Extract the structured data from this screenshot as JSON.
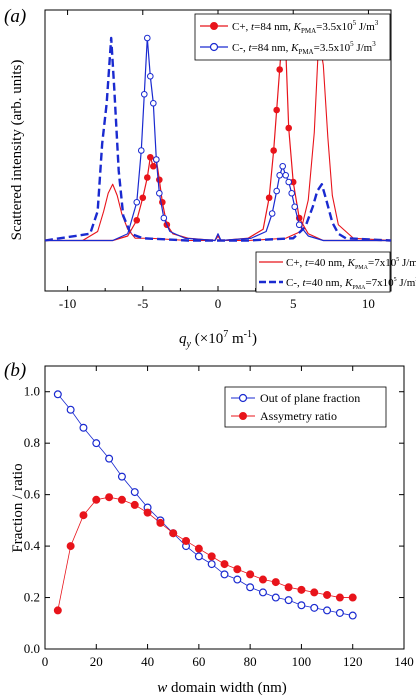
{
  "panel_a": {
    "label": "(a)",
    "ylabel": "Scattered intensity (arb. units)",
    "xlabel_main": "q",
    "xlabel_sub": "y",
    "xlabel_unit": " (×10",
    "xlabel_exp": "7",
    "xlabel_unit2": " m",
    "xlabel_exp2": "-1",
    "xlabel_close": ")",
    "legend_top": [
      {
        "name": "C+, t=84 nm, K_PMA=3.5x10^5 J/m^3",
        "text_a": "C+, ",
        "t": "t",
        "text_b": "=84 nm, ",
        "k": "K",
        "ksub": "PMA",
        "text_c": "=3.5x10",
        "e1": "5",
        "text_d": " J/m",
        "e2": "3"
      },
      {
        "name": "C-, t=84 nm, K_PMA=3.5x10^5 J/m^3",
        "text_a": "C-, ",
        "t": "t",
        "text_b": "=84 nm, ",
        "k": "K",
        "ksub": "PMA",
        "text_c": "=3.5x10",
        "e1": "5",
        "text_d": " J/m",
        "e2": "3"
      }
    ],
    "legend_bottom": [
      {
        "name": "C+, t=40 nm, K_PMA=7x10^5 J/m^3",
        "text_a": "C+, ",
        "t": "t",
        "text_b": "=40 nm, ",
        "k": "K",
        "ksub": "PMA",
        "text_c": "=7x10",
        "e1": "5",
        "text_d": " J/m",
        "e2": "3"
      },
      {
        "name": "C-, t=40 nm, K_PMA=7x10^5 J/m^3",
        "text_a": "C-, ",
        "t": "t",
        "text_b": "=40 nm, ",
        "k": "K",
        "ksub": "PMA",
        "text_c": "=7x10",
        "e1": "5",
        "text_d": " J/m",
        "e2": "3"
      }
    ]
  },
  "panel_b": {
    "label": "(b)",
    "ylabel": "Fraction / ratio",
    "xlabel_italic": "w",
    "xlabel_rest": " domain width (nm)"
  },
  "colors": {
    "red": "#e8141b",
    "blue": "#1a2ad0",
    "axis": "#000000"
  },
  "chart_data": [
    {
      "type": "line",
      "panel": "(a)",
      "xlabel": "q_y (×10^7 m^-1)",
      "ylabel": "Scattered intensity (arb. units)",
      "xlim": [
        -11.5,
        11.5
      ],
      "ylim": [
        0,
        1.0
      ],
      "xticks": [
        -10,
        -5,
        0,
        5,
        10
      ],
      "legend_positions": [
        "top-right",
        "bottom-right"
      ],
      "series": [
        {
          "name": "C+, t=84 nm, K_PMA=3.5x10^5 J/m^3",
          "color": "#e8141b",
          "style": "solid-filled-circle",
          "x": [
            -12,
            -7,
            -6,
            -5.4,
            -5.0,
            -4.7,
            -4.5,
            -4.3,
            -4.1,
            -3.9,
            -3.7,
            -3.4,
            -3.0,
            -2.0,
            -0.2,
            0,
            0.2,
            2.0,
            3.0,
            3.4,
            3.7,
            3.9,
            4.1,
            4.3,
            4.5,
            4.7,
            5.0,
            5.4,
            6.0,
            7.0,
            12
          ],
          "y": [
            0.02,
            0.02,
            0.04,
            0.11,
            0.21,
            0.3,
            0.39,
            0.35,
            0.38,
            0.29,
            0.19,
            0.09,
            0.05,
            0.03,
            0.02,
            0.04,
            0.02,
            0.03,
            0.07,
            0.21,
            0.42,
            0.6,
            0.78,
            0.96,
            0.88,
            0.52,
            0.28,
            0.12,
            0.05,
            0.02,
            0.02
          ]
        },
        {
          "name": "C-, t=84 nm, K_PMA=3.5x10^5 J/m^3",
          "color": "#1a2ad0",
          "style": "solid-open-circle",
          "x": [
            -12,
            -7,
            -6,
            -5.4,
            -5.1,
            -4.9,
            -4.7,
            -4.5,
            -4.3,
            -4.1,
            -3.9,
            -3.6,
            -3.2,
            -2.2,
            -0.2,
            0,
            0.2,
            2.2,
            3.2,
            3.6,
            3.9,
            4.1,
            4.3,
            4.5,
            4.7,
            4.9,
            5.1,
            5.4,
            6.0,
            7.0,
            12
          ],
          "y": [
            0.02,
            0.02,
            0.05,
            0.19,
            0.42,
            0.67,
            0.92,
            0.75,
            0.63,
            0.38,
            0.23,
            0.12,
            0.06,
            0.03,
            0.02,
            0.05,
            0.02,
            0.03,
            0.06,
            0.14,
            0.24,
            0.31,
            0.35,
            0.31,
            0.28,
            0.23,
            0.17,
            0.09,
            0.04,
            0.02,
            0.02
          ]
        },
        {
          "name": "C+, t=40 nm, K_PMA=7x10^5 J/m^3",
          "color": "#e8141b",
          "style": "solid-thin",
          "x": [
            -12,
            -9,
            -8,
            -7.6,
            -7.3,
            -7.0,
            -6.7,
            -6.4,
            -6.0,
            -5.5,
            -4.5,
            -2,
            -0.2,
            0,
            0.2,
            2,
            4.5,
            5.5,
            6.0,
            6.4,
            6.7,
            7.0,
            7.3,
            7.6,
            8.0,
            9.0,
            12
          ],
          "y": [
            0.02,
            0.02,
            0.06,
            0.15,
            0.23,
            0.27,
            0.22,
            0.14,
            0.07,
            0.03,
            0.03,
            0.02,
            0.02,
            0.04,
            0.02,
            0.02,
            0.03,
            0.06,
            0.2,
            0.5,
            0.92,
            0.8,
            0.48,
            0.22,
            0.09,
            0.03,
            0.02
          ]
        },
        {
          "name": "C-, t=40 nm, K_PMA=7x10^5 J/m^3",
          "color": "#1a2ad0",
          "style": "dashed-thick",
          "x": [
            -12,
            -8.5,
            -8.0,
            -7.7,
            -7.4,
            -7.1,
            -6.9,
            -6.6,
            -6.3,
            -5.8,
            -5.0,
            -2,
            0,
            2,
            5.0,
            5.8,
            6.3,
            6.6,
            6.9,
            7.2,
            7.6,
            8.0,
            8.5,
            12
          ],
          "y": [
            0.02,
            0.05,
            0.15,
            0.45,
            0.63,
            0.92,
            0.7,
            0.33,
            0.13,
            0.05,
            0.03,
            0.02,
            0.02,
            0.02,
            0.03,
            0.08,
            0.17,
            0.24,
            0.27,
            0.2,
            0.1,
            0.05,
            0.03,
            0.02
          ]
        }
      ]
    },
    {
      "type": "line",
      "panel": "(b)",
      "xlabel": "w domain width (nm)",
      "ylabel": "Fraction / ratio",
      "xlim": [
        0,
        140
      ],
      "ylim": [
        0,
        1.1
      ],
      "xticks": [
        0,
        20,
        40,
        60,
        80,
        100,
        120,
        140
      ],
      "yticks": [
        0.0,
        0.2,
        0.4,
        0.6,
        0.8,
        1.0
      ],
      "legend_position": "top-right",
      "series": [
        {
          "name": "Out of plane fraction",
          "color": "#1a2ad0",
          "marker": "open-circle",
          "x": [
            5,
            10,
            15,
            20,
            25,
            30,
            35,
            40,
            45,
            50,
            55,
            60,
            65,
            70,
            75,
            80,
            85,
            90,
            95,
            100,
            105,
            110,
            115,
            120
          ],
          "y": [
            0.99,
            0.93,
            0.86,
            0.8,
            0.74,
            0.67,
            0.61,
            0.55,
            0.5,
            0.45,
            0.4,
            0.36,
            0.33,
            0.29,
            0.27,
            0.24,
            0.22,
            0.2,
            0.19,
            0.17,
            0.16,
            0.15,
            0.14,
            0.13
          ]
        },
        {
          "name": "Assymetry ratio",
          "color": "#e8141b",
          "marker": "filled-circle",
          "x": [
            5,
            10,
            15,
            20,
            25,
            30,
            35,
            40,
            45,
            50,
            55,
            60,
            65,
            70,
            75,
            80,
            85,
            90,
            95,
            100,
            105,
            110,
            115,
            120
          ],
          "y": [
            0.15,
            0.4,
            0.52,
            0.58,
            0.59,
            0.58,
            0.56,
            0.53,
            0.49,
            0.45,
            0.42,
            0.39,
            0.36,
            0.33,
            0.31,
            0.29,
            0.27,
            0.26,
            0.24,
            0.23,
            0.22,
            0.21,
            0.2,
            0.2
          ]
        }
      ]
    }
  ]
}
